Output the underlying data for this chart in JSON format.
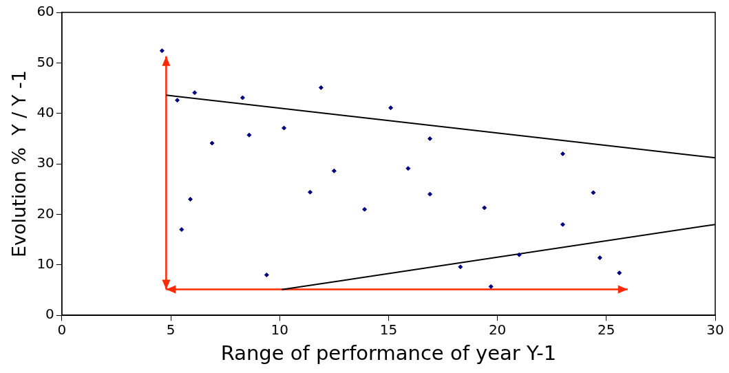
{
  "chart_data": {
    "type": "scatter",
    "xlabel": "Range of performance of year Y-1",
    "ylabel": "Evolution %  Y / Y -1",
    "xlim": [
      0,
      30
    ],
    "xticks": [
      0,
      5,
      10,
      15,
      20,
      25,
      30
    ],
    "ylim": [
      0,
      60
    ],
    "yticks": [
      0,
      10,
      20,
      30,
      40,
      50,
      60
    ],
    "grid": false,
    "legend": false,
    "marker": "diamond",
    "series": [
      {
        "type": "scatter",
        "color": "#000080",
        "x": [
          4.6,
          5.3,
          6.1,
          5.5,
          5.9,
          6.9,
          8.3,
          8.6,
          9.4,
          10.2,
          11.4,
          11.9,
          12.5,
          13.9,
          15.1,
          15.9,
          16.9,
          16.9,
          18.3,
          19.4,
          19.7,
          21.0,
          23.0,
          23.0,
          24.4,
          24.7,
          25.6
        ],
        "values": [
          52.4,
          42.6,
          44.1,
          17,
          23,
          34.1,
          43.1,
          35.7,
          8,
          37.1,
          24.4,
          45.1,
          28.6,
          21,
          41.1,
          29.1,
          35,
          24,
          9.6,
          21.3,
          5.7,
          12,
          32,
          18,
          24.3,
          11.4,
          8.4
        ]
      },
      {
        "type": "line",
        "color": "#000000",
        "marker": "none",
        "x": [
          4.8,
          30
        ],
        "values": [
          43.6,
          31.2
        ]
      },
      {
        "type": "line",
        "color": "#000000",
        "marker": "none",
        "x": [
          10.1,
          30
        ],
        "values": [
          5.1,
          18.0
        ]
      }
    ]
  }
}
